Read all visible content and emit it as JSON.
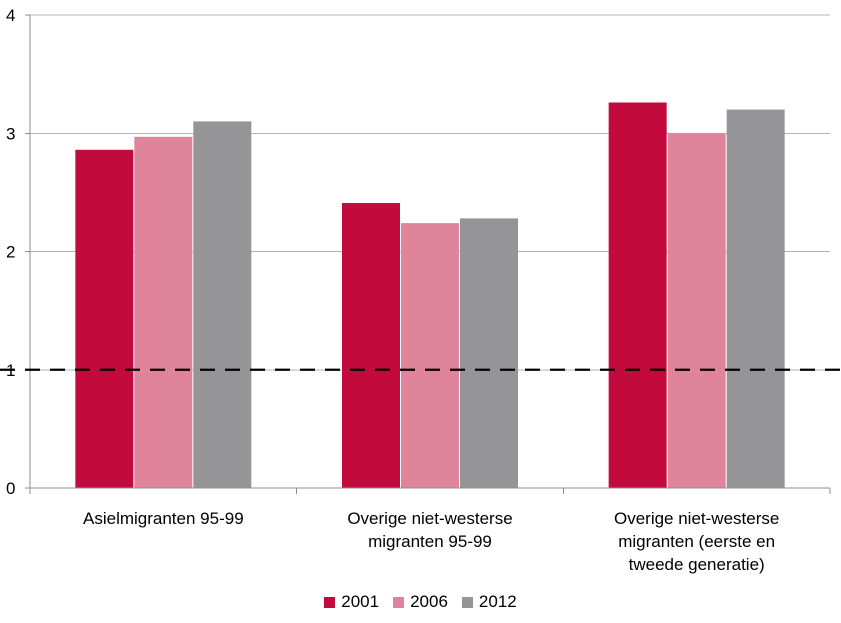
{
  "chart_data": {
    "type": "bar",
    "categories": [
      [
        "Asielmigranten 95-99"
      ],
      [
        "Overige niet-westerse",
        "migranten 95-99"
      ],
      [
        "Overige niet-westerse",
        "migranten (eerste en",
        "tweede generatie)"
      ]
    ],
    "series": [
      {
        "name": "2001",
        "color": "#c30a3c",
        "values": [
          2.86,
          2.41,
          3.26
        ]
      },
      {
        "name": "2006",
        "color": "#e0849c",
        "values": [
          2.97,
          2.24,
          3.0
        ]
      },
      {
        "name": "2012",
        "color": "#959597",
        "values": [
          3.1,
          2.28,
          3.2
        ]
      }
    ],
    "yticks": [
      "0",
      "1",
      "2",
      "3",
      "4"
    ],
    "ylim": [
      0,
      4
    ],
    "reference_line": 1,
    "grid": true,
    "legend_position": "bottom"
  }
}
